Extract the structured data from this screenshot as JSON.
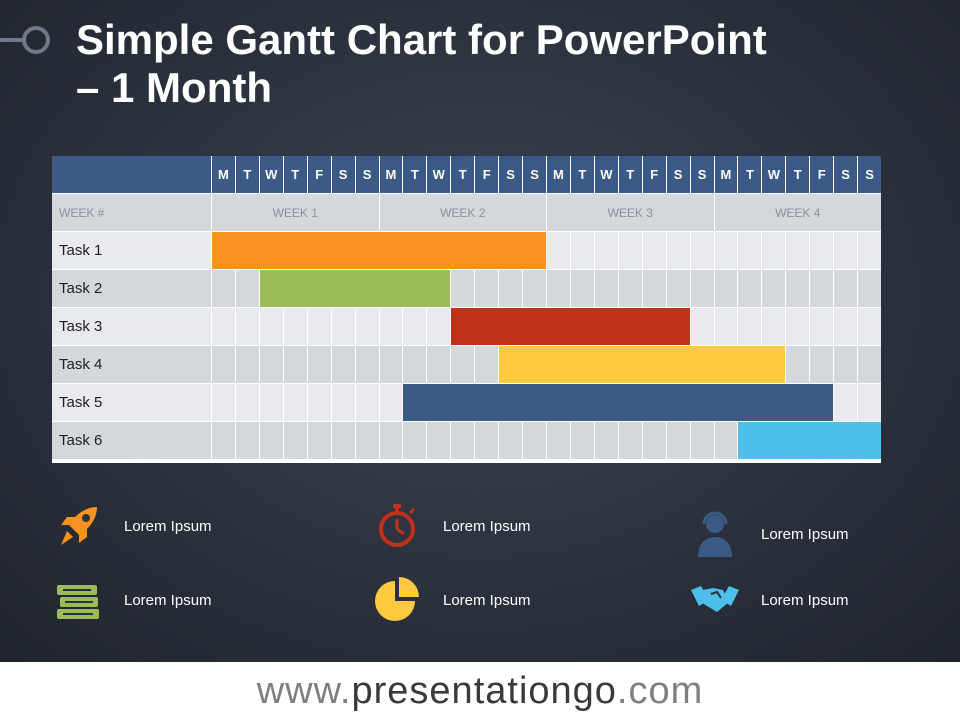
{
  "title": {
    "line1": "Simple Gantt Chart for PowerPoint",
    "line2": "– 1 Month"
  },
  "chart_data": {
    "type": "gantt",
    "days": [
      "M",
      "T",
      "W",
      "T",
      "F",
      "S",
      "S",
      "M",
      "T",
      "W",
      "T",
      "F",
      "S",
      "S",
      "M",
      "T",
      "W",
      "T",
      "F",
      "S",
      "S",
      "M",
      "T",
      "W",
      "T",
      "F",
      "S",
      "S"
    ],
    "week_header_label": "WEEK #",
    "weeks": [
      "WEEK 1",
      "WEEK 2",
      "WEEK 3",
      "WEEK 4"
    ],
    "tasks": [
      {
        "name": "Task 1",
        "start_day": 1,
        "end_day": 14,
        "color": "#f7931e"
      },
      {
        "name": "Task 2",
        "start_day": 3,
        "end_day": 10,
        "color": "#9bbb59"
      },
      {
        "name": "Task 3",
        "start_day": 11,
        "end_day": 20,
        "color": "#c0311a"
      },
      {
        "name": "Task 4",
        "start_day": 13,
        "end_day": 24,
        "color": "#ffc940"
      },
      {
        "name": "Task 5",
        "start_day": 9,
        "end_day": 26,
        "color": "#3b5a85"
      },
      {
        "name": "Task 6",
        "start_day": 23,
        "end_day": 28,
        "color": "#4cbfeb"
      }
    ]
  },
  "legend": [
    {
      "icon": "rocket-icon",
      "label": "Lorem Ipsum",
      "color": "#f7931e"
    },
    {
      "icon": "stopwatch-icon",
      "label": "Lorem Ipsum",
      "color": "#c0311a"
    },
    {
      "icon": "support-agent-icon",
      "label": "Lorem Ipsum",
      "color": "#3b5a85"
    },
    {
      "icon": "books-icon",
      "label": "Lorem Ipsum",
      "color": "#9bbb59"
    },
    {
      "icon": "pie-chart-icon",
      "label": "Lorem Ipsum",
      "color": "#ffc940"
    },
    {
      "icon": "handshake-icon",
      "label": "Lorem Ipsum",
      "color": "#4cbfeb"
    }
  ],
  "footer": {
    "prefix": "www.",
    "brand": "presentationgo",
    "suffix": ".com"
  }
}
